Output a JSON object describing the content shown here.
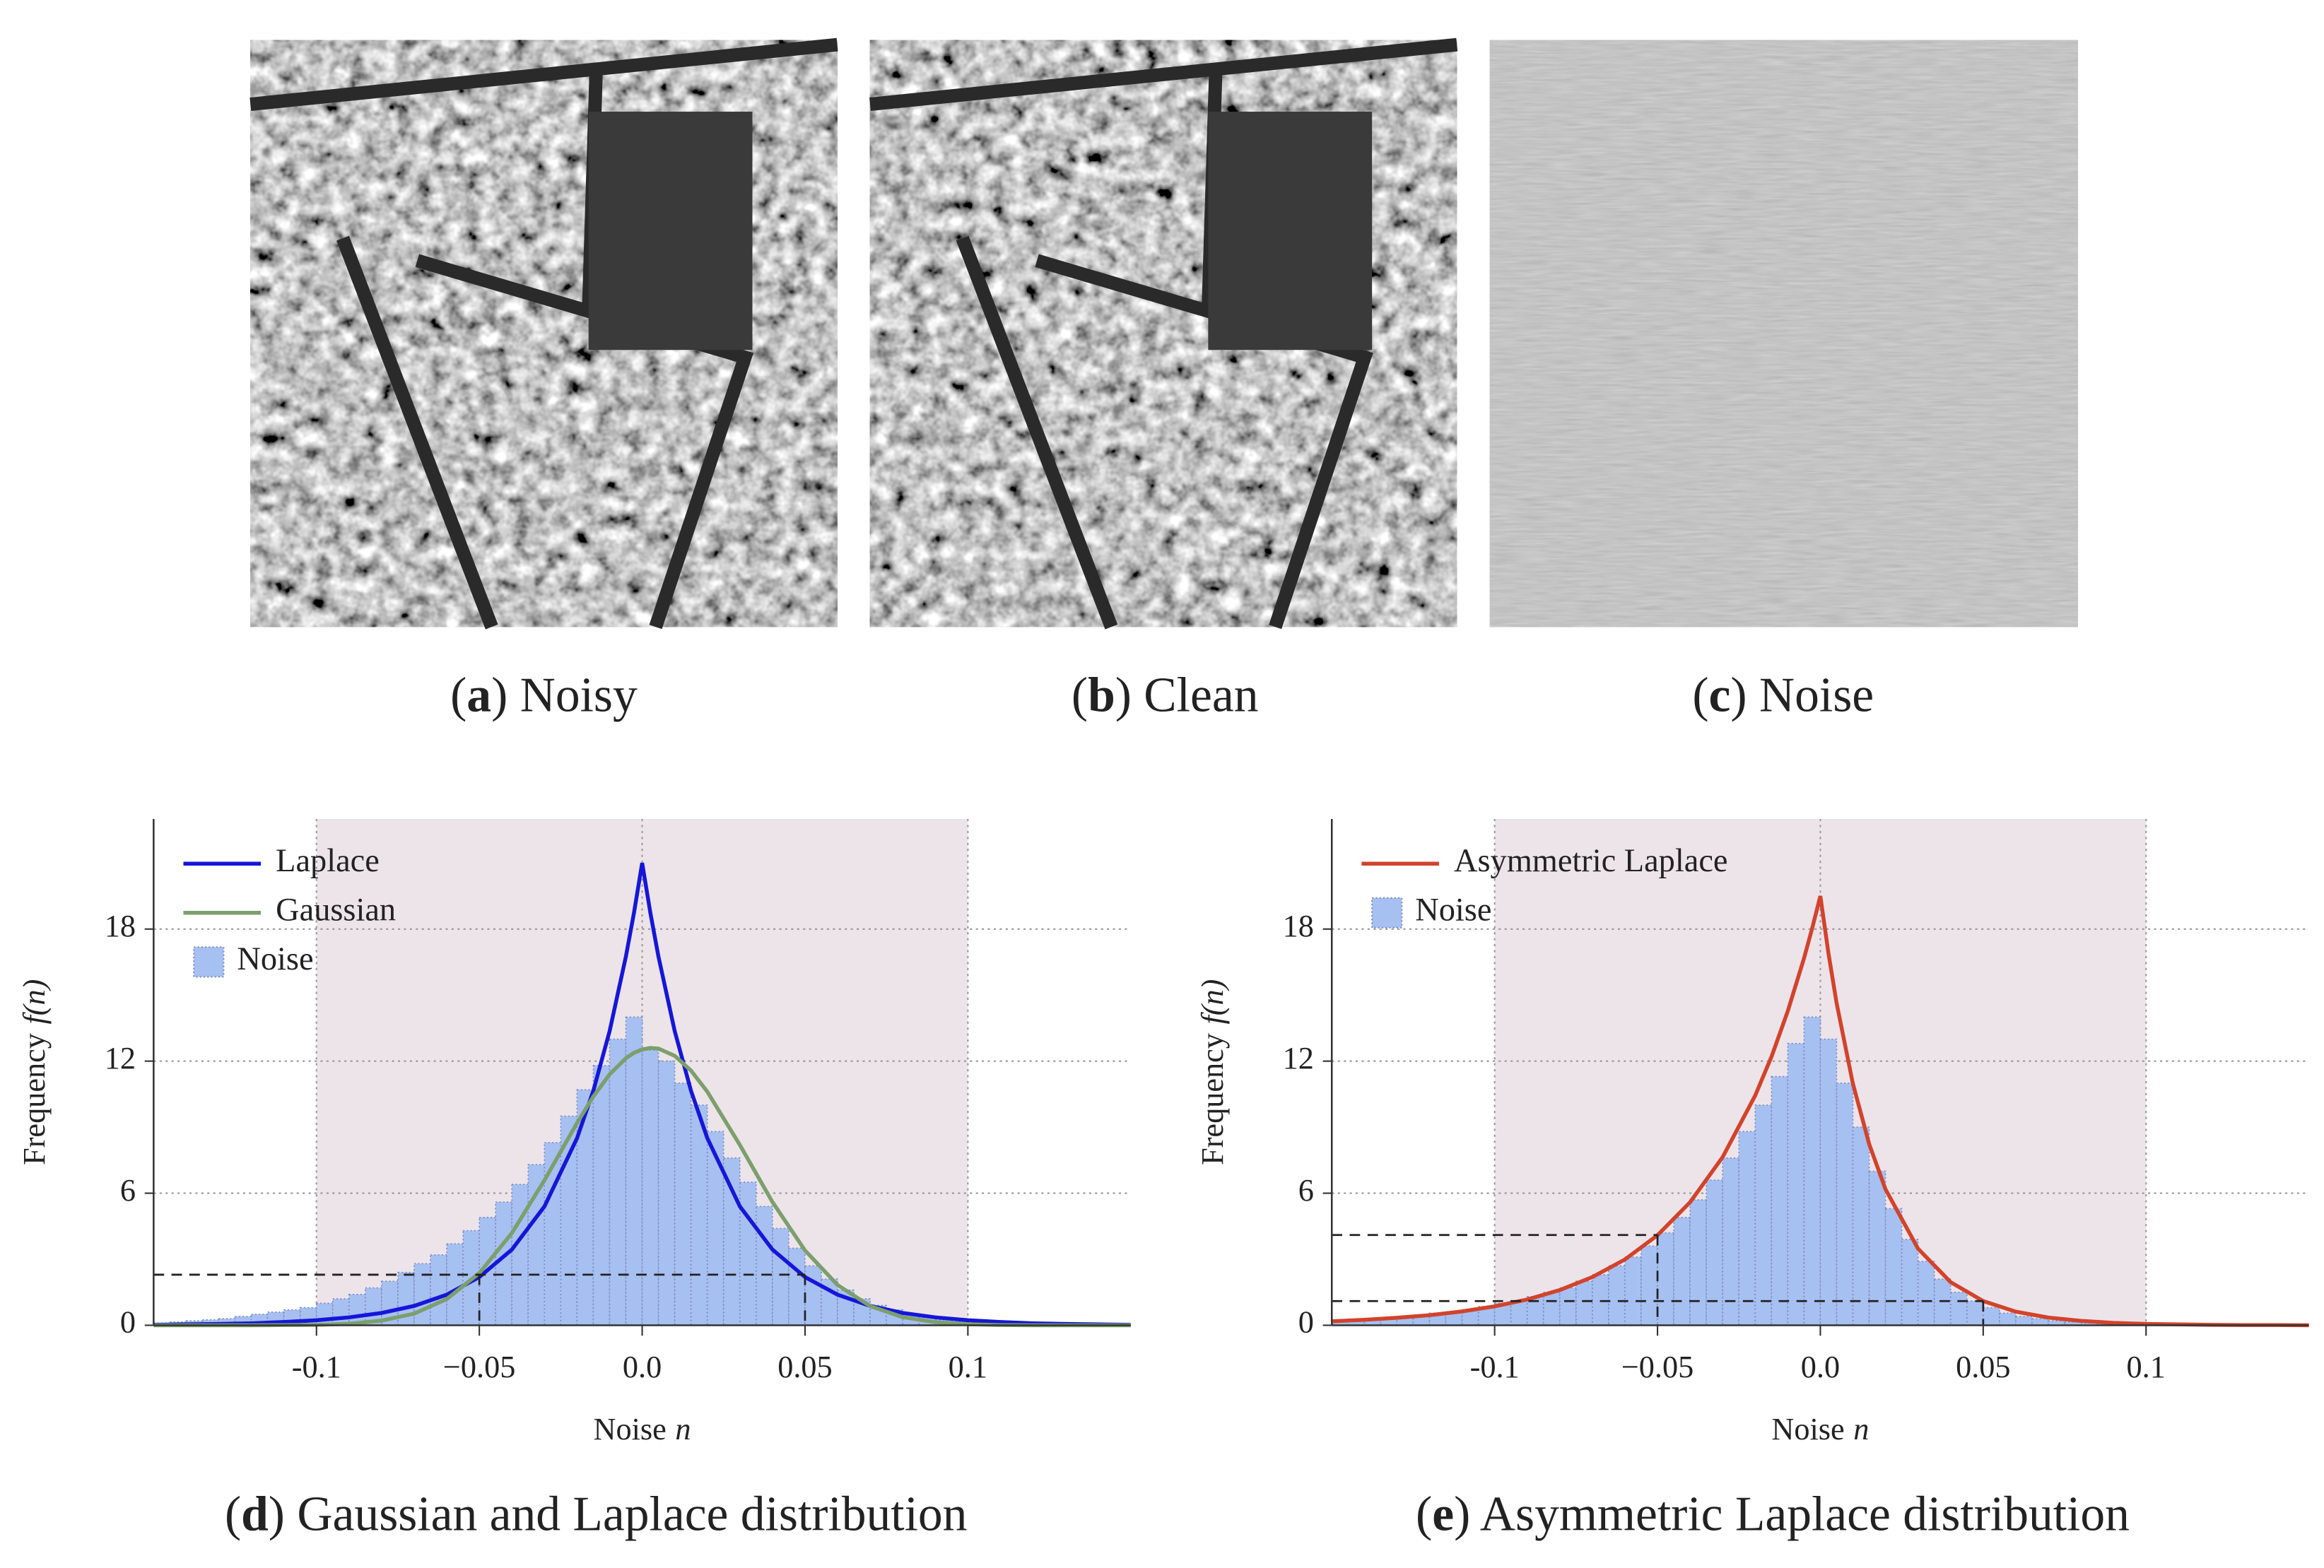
{
  "images": [
    {
      "caption": [
        "(",
        "a",
        ") Noisy"
      ]
    },
    {
      "caption": [
        "(",
        "b",
        ") Clean"
      ]
    },
    {
      "caption": [
        "(",
        "c",
        ") Noise"
      ]
    }
  ],
  "chart_data": [
    {
      "type": "histogram",
      "caption": [
        "(",
        "d",
        ") Gaussian and Laplace distribution"
      ],
      "xlabel": [
        "Noise",
        "n"
      ],
      "ylabel": [
        "Frequency",
        "f(n)"
      ],
      "xlim": [
        -0.15,
        0.15
      ],
      "ylim": [
        0,
        23
      ],
      "xticks": [
        -0.1,
        {
          "value": -0.05,
          "label": "−0.05"
        },
        {
          "value": 0,
          "label": "0.0"
        },
        0.05,
        0.1
      ],
      "yticks": [
        0,
        6,
        12,
        18
      ],
      "xgrid": [
        -0.1,
        0,
        0.1
      ],
      "span": [
        -0.1,
        0.1
      ],
      "span_color": "#ede4ea",
      "legend": "upper left",
      "reference_lines": [
        {
          "x": -0.05,
          "y": 2.3
        },
        {
          "x": 0.05,
          "y": 2.3
        }
      ],
      "series": [
        {
          "name": "Laplace",
          "type": "line",
          "color": "#1616d8",
          "x": [
            -0.15,
            -0.14,
            -0.13,
            -0.12,
            -0.11,
            -0.1,
            -0.09,
            -0.08,
            -0.07,
            -0.06,
            -0.05,
            -0.04,
            -0.03,
            -0.02,
            -0.015,
            -0.01,
            -0.005,
            -0.0025,
            0,
            0.0025,
            0.005,
            0.01,
            0.015,
            0.02,
            0.03,
            0.04,
            0.05,
            0.06,
            0.07,
            0.08,
            0.09,
            0.1,
            0.11,
            0.12,
            0.13,
            0.14,
            0.15
          ],
          "values": [
            0.02,
            0.04,
            0.06,
            0.09,
            0.15,
            0.23,
            0.36,
            0.56,
            0.88,
            1.39,
            2.19,
            3.44,
            5.4,
            8.5,
            10.65,
            13.36,
            16.75,
            18.75,
            21,
            18.75,
            16.75,
            13.36,
            10.65,
            8.5,
            5.4,
            3.44,
            2.19,
            1.39,
            0.88,
            0.56,
            0.36,
            0.23,
            0.15,
            0.09,
            0.06,
            0.04,
            0.02
          ]
        },
        {
          "name": "Gaussian",
          "type": "line",
          "color": "#7c9f6c",
          "x": [
            -0.15,
            -0.14,
            -0.13,
            -0.12,
            -0.11,
            -0.1,
            -0.09,
            -0.08,
            -0.07,
            -0.06,
            -0.05,
            -0.04,
            -0.03,
            -0.02,
            -0.015,
            -0.01,
            -0.005,
            -0.0025,
            0,
            0.0025,
            0.005,
            0.01,
            0.015,
            0.02,
            0.03,
            0.04,
            0.05,
            0.06,
            0.07,
            0.08,
            0.09,
            0.1,
            0.11,
            0.12,
            0.13,
            0.14,
            0.15
          ],
          "values": [
            0,
            0,
            0,
            0,
            0.01,
            0.02,
            0.07,
            0.21,
            0.53,
            1.19,
            2.37,
            4.19,
            6.59,
            9.19,
            10.39,
            11.4,
            12.13,
            12.38,
            12.53,
            12.6,
            12.57,
            12.24,
            11.57,
            10.61,
            8.19,
            5.6,
            3.4,
            1.83,
            0.87,
            0.37,
            0.14,
            0.05,
            0.01,
            0,
            0,
            0,
            0
          ]
        },
        {
          "name": "Noise",
          "type": "histogram",
          "color": "#a7c0f2",
          "bins": [
            -0.15,
            -0.145,
            -0.14,
            -0.135,
            -0.13,
            -0.125,
            -0.12,
            -0.115,
            -0.11,
            -0.105,
            -0.1,
            -0.095,
            -0.09,
            -0.085,
            -0.08,
            -0.075,
            -0.07,
            -0.065,
            -0.06,
            -0.055,
            -0.05,
            -0.045,
            -0.04,
            -0.035,
            -0.03,
            -0.025,
            -0.02,
            -0.015,
            -0.01,
            -0.005,
            0,
            0.005,
            0.01,
            0.015,
            0.02,
            0.025,
            0.03,
            0.035,
            0.04,
            0.045,
            0.05,
            0.055,
            0.06,
            0.065,
            0.07,
            0.075,
            0.08,
            0.085,
            0.09,
            0.095,
            0.1,
            0.105,
            0.11,
            0.115,
            0.12,
            0.125,
            0.13,
            0.135,
            0.14,
            0.145,
            0.15
          ],
          "values": [
            0.1,
            0.15,
            0.2,
            0.25,
            0.3,
            0.4,
            0.5,
            0.6,
            0.7,
            0.8,
            1.0,
            1.2,
            1.4,
            1.7,
            2.0,
            2.4,
            2.8,
            3.2,
            3.7,
            4.3,
            4.9,
            5.6,
            6.4,
            7.3,
            8.3,
            9.5,
            10.7,
            11.8,
            13.0,
            14.0,
            12.5,
            12.0,
            11.0,
            10.0,
            8.8,
            7.6,
            6.5,
            5.4,
            4.4,
            3.5,
            2.7,
            2.1,
            1.6,
            1.2,
            0.9,
            0.7,
            0.5,
            0.35,
            0.25,
            0.18,
            0.12,
            0.08,
            0.06,
            0.04,
            0.03,
            0.02,
            0.01,
            0.01,
            0,
            0
          ]
        }
      ]
    },
    {
      "type": "histogram",
      "caption": [
        "(",
        "e",
        ") Asymmetric Laplace distribution"
      ],
      "xlabel": [
        "Noise",
        "n"
      ],
      "ylabel": [
        "Frequency",
        "f(n)"
      ],
      "xlim": [
        -0.15,
        0.15
      ],
      "ylim": [
        0,
        23
      ],
      "xticks": [
        -0.1,
        {
          "value": -0.05,
          "label": "−0.05"
        },
        {
          "value": 0,
          "label": "0.0"
        },
        0.05,
        0.1
      ],
      "yticks": [
        0,
        6,
        12,
        18
      ],
      "xgrid": [
        -0.1,
        0,
        0.1
      ],
      "span": [
        -0.1,
        0.1
      ],
      "span_color": "#ede4ea",
      "legend": "upper left",
      "reference_lines": [
        {
          "x": -0.05,
          "y": 4.1
        },
        {
          "x": 0.05,
          "y": 1.1
        }
      ],
      "series": [
        {
          "name": "Asymmetric Laplace",
          "type": "line",
          "color": "#d2432b",
          "x": [
            -0.15,
            -0.14,
            -0.13,
            -0.12,
            -0.11,
            -0.1,
            -0.09,
            -0.08,
            -0.07,
            -0.06,
            -0.05,
            -0.04,
            -0.03,
            -0.02,
            -0.015,
            -0.01,
            -0.005,
            -0.0025,
            0,
            0.0025,
            0.005,
            0.01,
            0.015,
            0.02,
            0.03,
            0.04,
            0.05,
            0.06,
            0.07,
            0.08,
            0.09,
            0.1,
            0.11,
            0.12,
            0.13,
            0.14,
            0.15
          ],
          "values": [
            0.18,
            0.25,
            0.34,
            0.46,
            0.63,
            0.86,
            1.17,
            1.6,
            2.19,
            2.99,
            4.09,
            5.59,
            7.64,
            10.44,
            12.2,
            14.27,
            16.68,
            18.04,
            19.5,
            16.89,
            14.63,
            10.97,
            8.23,
            6.18,
            3.48,
            1.96,
            1.1,
            0.62,
            0.35,
            0.2,
            0.11,
            0.06,
            0.04,
            0.02,
            0.01,
            0.01,
            0
          ]
        },
        {
          "name": "Noise",
          "type": "histogram",
          "color": "#a7c0f2",
          "bins": [
            -0.15,
            -0.145,
            -0.14,
            -0.135,
            -0.13,
            -0.125,
            -0.12,
            -0.115,
            -0.11,
            -0.105,
            -0.1,
            -0.095,
            -0.09,
            -0.085,
            -0.08,
            -0.075,
            -0.07,
            -0.065,
            -0.06,
            -0.055,
            -0.05,
            -0.045,
            -0.04,
            -0.035,
            -0.03,
            -0.025,
            -0.02,
            -0.015,
            -0.01,
            -0.005,
            0,
            0.005,
            0.01,
            0.015,
            0.02,
            0.025,
            0.03,
            0.035,
            0.04,
            0.045,
            0.05,
            0.055,
            0.06,
            0.065,
            0.07,
            0.075,
            0.08,
            0.085,
            0.09,
            0.095,
            0.1,
            0.105,
            0.11,
            0.115,
            0.12,
            0.125,
            0.13,
            0.135,
            0.14,
            0.145,
            0.15
          ],
          "values": [
            0.2,
            0.25,
            0.3,
            0.35,
            0.4,
            0.45,
            0.55,
            0.6,
            0.7,
            0.85,
            1.0,
            1.1,
            1.3,
            1.5,
            1.7,
            2.0,
            2.3,
            2.7,
            3.1,
            3.6,
            4.2,
            4.9,
            5.7,
            6.6,
            7.6,
            8.8,
            10.0,
            11.3,
            12.8,
            14.0,
            13.0,
            11.0,
            9.0,
            7.0,
            5.3,
            3.9,
            2.9,
            2.1,
            1.5,
            1.1,
            0.8,
            0.55,
            0.4,
            0.3,
            0.2,
            0.15,
            0.1,
            0.07,
            0.05,
            0.03,
            0.02,
            0.01,
            0.01,
            0,
            0,
            0,
            0,
            0,
            0,
            0
          ]
        }
      ]
    }
  ]
}
